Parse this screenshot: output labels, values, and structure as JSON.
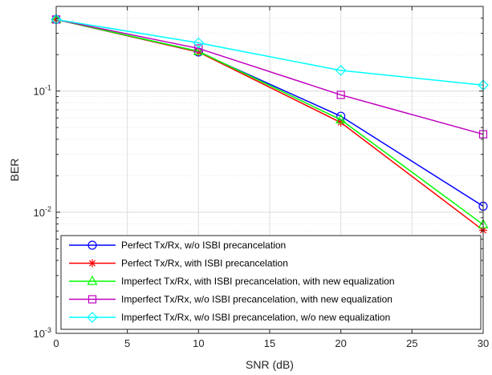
{
  "chart_data": {
    "type": "line",
    "title": "",
    "xlabel": "SNR (dB)",
    "ylabel": "BER",
    "xlim": [
      0,
      30
    ],
    "ylim": [
      0.001,
      0.5
    ],
    "yscale": "log",
    "grid": true,
    "minor_grid": true,
    "legend_position": "bottom-right",
    "xticks": [
      0,
      5,
      10,
      15,
      20,
      25,
      30
    ],
    "xtick_labels": [
      "0",
      "5",
      "10",
      "15",
      "20",
      "25",
      "30"
    ],
    "yticks": [
      0.001,
      0.01,
      0.1
    ],
    "ytick_labels": [
      {
        "base": "10",
        "exp": "-3"
      },
      {
        "base": "10",
        "exp": "-2"
      },
      {
        "base": "10",
        "exp": "-1"
      }
    ],
    "x": [
      0,
      10,
      20,
      30
    ],
    "series": [
      {
        "name": "Perfect Tx/Rx, w/o ISBI precancelation",
        "color": "#0000ff",
        "marker": "circle",
        "values": [
          0.39,
          0.21,
          0.062,
          0.0112
        ]
      },
      {
        "name": "Perfect Tx/Rx, with ISBI precancelation",
        "color": "#ff0000",
        "marker": "asterisk",
        "values": [
          0.39,
          0.21,
          0.055,
          0.0071
        ]
      },
      {
        "name": "Imperfect Tx/Rx, with ISBI precancelation, with new equalization",
        "color": "#00ff00",
        "marker": "triangle",
        "values": [
          0.39,
          0.213,
          0.058,
          0.0079
        ]
      },
      {
        "name": "Imperfect Tx/Rx, w/o ISBI precancelation, with new equalization",
        "color": "#bf00bf",
        "marker": "square",
        "values": [
          0.39,
          0.225,
          0.093,
          0.044
        ]
      },
      {
        "name": "Imperfect Tx/Rx, w/o ISBI precancelation, w/o new equalization",
        "color": "#00ffff",
        "marker": "diamond",
        "values": [
          0.39,
          0.25,
          0.148,
          0.112
        ]
      }
    ]
  }
}
